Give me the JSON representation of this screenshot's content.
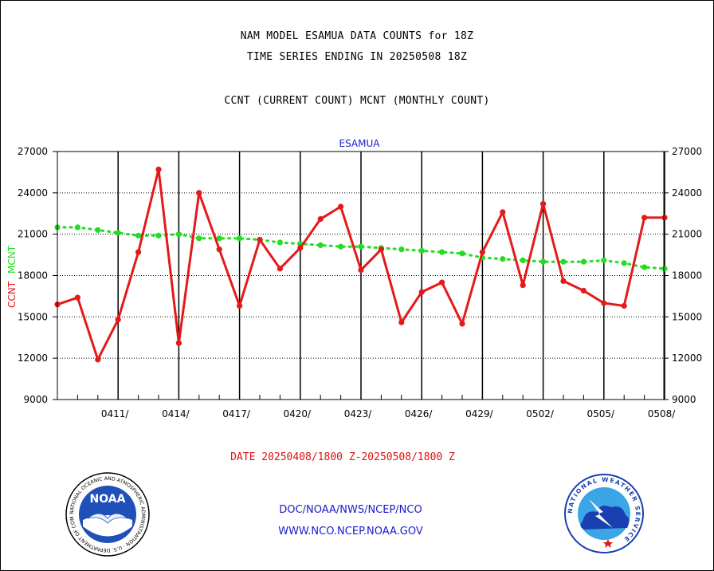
{
  "header": {
    "line1": "NAM MODEL ESAMUA DATA COUNTS for 18Z",
    "line2": "TIME SERIES ENDING IN 20250508 18Z",
    "line3": "CCNT (CURRENT COUNT) MCNT (MONTHLY COUNT)"
  },
  "footer": {
    "date_range": "DATE 20250408/1800 Z-20250508/1800 Z",
    "org_path": "DOC/NOAA/NWS/NCEP/NCO",
    "website": "WWW.NCO.NCEP.NOAA.GOV"
  },
  "logos": {
    "noaa_text": "NOAA",
    "noaa_ring": "NATIONAL OCEANIC AND ATMOSPHERIC ADMINISTRATION · U.S. DEPARTMENT OF COMMERCE ·",
    "nws_ring": "NATIONAL WEATHER SERVICE"
  },
  "colors": {
    "ccnt": "#e41a1a",
    "mcnt": "#22dd22",
    "title": "#1a1acc"
  },
  "chart_data": {
    "type": "line",
    "title": "ESAMUA",
    "ylabel_left": {
      "ccnt": "CCNT",
      "mcnt": "MCNT"
    },
    "ylim": [
      9000,
      27000
    ],
    "yticks": [
      9000,
      12000,
      15000,
      18000,
      21000,
      24000,
      27000
    ],
    "xlim_days": [
      0,
      30
    ],
    "xtick_labels": [
      "0411/",
      "0414/",
      "0417/",
      "0420/",
      "0423/",
      "0426/",
      "0429/",
      "0502/",
      "0505/",
      "0508/"
    ],
    "grid": true,
    "series": [
      {
        "name": "CCNT",
        "color": "#e41a1a",
        "values": [
          15900,
          16400,
          11900,
          14800,
          19700,
          25700,
          13100,
          24000,
          19900,
          15800,
          20600,
          18500,
          20000,
          22100,
          23000,
          18400,
          19900,
          14600,
          16800,
          17500,
          14500,
          19700,
          22600,
          17300,
          23200,
          17600,
          16900,
          16000,
          15800,
          22200,
          22200
        ]
      },
      {
        "name": "MCNT",
        "color": "#22dd22",
        "values": [
          21500,
          21500,
          21300,
          21100,
          20900,
          20900,
          21000,
          20700,
          20700,
          20700,
          20600,
          20400,
          20300,
          20200,
          20100,
          20100,
          20000,
          19900,
          19800,
          19700,
          19600,
          19300,
          19200,
          19100,
          19000,
          19000,
          19000,
          19100,
          18900,
          18600,
          18500
        ]
      }
    ]
  }
}
